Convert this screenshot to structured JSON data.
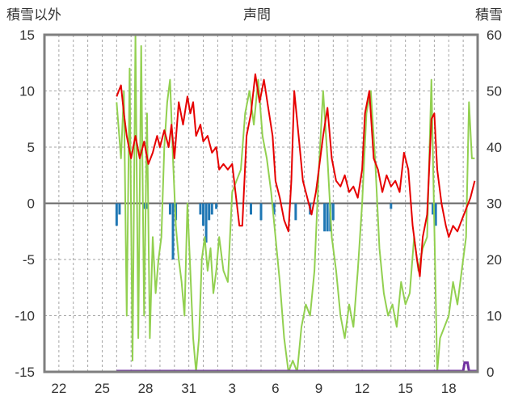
{
  "chart_data": {
    "type": "line",
    "title": "声問",
    "left_axis_label": "積雪以外",
    "right_axis_label": "積雪",
    "left_ylim": [
      -15,
      15
    ],
    "left_yticks": [
      15,
      10,
      5,
      0,
      -5,
      -10,
      -15
    ],
    "right_ylim": [
      0,
      60
    ],
    "right_yticks": [
      60,
      50,
      40,
      30,
      20,
      10,
      0
    ],
    "x_range": [
      0,
      30
    ],
    "x_ticks": [
      {
        "label": "22",
        "pos": 1
      },
      {
        "label": "25",
        "pos": 4
      },
      {
        "label": "28",
        "pos": 7
      },
      {
        "label": "31",
        "pos": 10
      },
      {
        "label": "3",
        "pos": 13
      },
      {
        "label": "6",
        "pos": 16
      },
      {
        "label": "9",
        "pos": 19
      },
      {
        "label": "12",
        "pos": 22
      },
      {
        "label": "15",
        "pos": 25
      },
      {
        "label": "18",
        "pos": 28
      }
    ],
    "grid": true,
    "colors": {
      "temperature": "#e60000",
      "wind": "#92d050",
      "precipitation": "#1f77b4",
      "snow": "#7030a0",
      "frame": "#7f7f7f"
    },
    "series": [
      {
        "key": "temperature",
        "axis": "left",
        "points": [
          [
            5.0,
            9.5
          ],
          [
            5.3,
            10.5
          ],
          [
            5.5,
            8.0
          ],
          [
            5.7,
            6.0
          ],
          [
            6.0,
            4.0
          ],
          [
            6.3,
            6.0
          ],
          [
            6.6,
            4.0
          ],
          [
            6.9,
            5.5
          ],
          [
            7.2,
            3.5
          ],
          [
            7.5,
            4.5
          ],
          [
            7.8,
            6.0
          ],
          [
            8.0,
            5.0
          ],
          [
            8.3,
            6.5
          ],
          [
            8.6,
            5.0
          ],
          [
            8.8,
            7.0
          ],
          [
            9.0,
            4.0
          ],
          [
            9.3,
            9.0
          ],
          [
            9.6,
            7.0
          ],
          [
            9.9,
            9.5
          ],
          [
            10.1,
            8.0
          ],
          [
            10.3,
            9.0
          ],
          [
            10.5,
            6.0
          ],
          [
            10.8,
            7.0
          ],
          [
            11.0,
            5.5
          ],
          [
            11.3,
            6.0
          ],
          [
            11.6,
            4.5
          ],
          [
            11.9,
            5.0
          ],
          [
            12.1,
            3.0
          ],
          [
            12.4,
            3.5
          ],
          [
            12.7,
            3.0
          ],
          [
            13.0,
            3.5
          ],
          [
            13.5,
            -2.0
          ],
          [
            13.7,
            -2.0
          ],
          [
            14.0,
            6.0
          ],
          [
            14.3,
            8.0
          ],
          [
            14.6,
            11.5
          ],
          [
            14.9,
            9.0
          ],
          [
            15.2,
            11.0
          ],
          [
            15.5,
            8.5
          ],
          [
            15.8,
            6.0
          ],
          [
            16.0,
            2.0
          ],
          [
            16.3,
            0.5
          ],
          [
            16.6,
            -1.5
          ],
          [
            16.9,
            -2.5
          ],
          [
            17.1,
            2.0
          ],
          [
            17.3,
            10.0
          ],
          [
            17.6,
            6.0
          ],
          [
            17.9,
            2.0
          ],
          [
            18.2,
            0.5
          ],
          [
            18.5,
            -1.0
          ],
          [
            18.8,
            1.0
          ],
          [
            19.0,
            3.0
          ],
          [
            19.3,
            6.0
          ],
          [
            19.6,
            8.5
          ],
          [
            19.9,
            4.0
          ],
          [
            20.2,
            2.0
          ],
          [
            20.5,
            1.5
          ],
          [
            20.8,
            2.5
          ],
          [
            21.1,
            1.0
          ],
          [
            21.4,
            1.5
          ],
          [
            21.7,
            0.5
          ],
          [
            22.0,
            3.0
          ],
          [
            22.2,
            8.0
          ],
          [
            22.5,
            10.0
          ],
          [
            22.8,
            4.0
          ],
          [
            23.1,
            3.0
          ],
          [
            23.4,
            1.0
          ],
          [
            23.7,
            2.5
          ],
          [
            24.0,
            1.5
          ],
          [
            24.3,
            2.0
          ],
          [
            24.6,
            1.0
          ],
          [
            24.9,
            4.5
          ],
          [
            25.2,
            3.0
          ],
          [
            25.5,
            -2.0
          ],
          [
            25.8,
            -5.0
          ],
          [
            26.0,
            -6.5
          ],
          [
            26.2,
            -3.0
          ],
          [
            26.5,
            -1.0
          ],
          [
            26.8,
            7.5
          ],
          [
            27.0,
            8.0
          ],
          [
            27.2,
            3.0
          ],
          [
            27.5,
            0.0
          ],
          [
            27.8,
            -2.0
          ],
          [
            28.0,
            -3.0
          ],
          [
            28.3,
            -2.0
          ],
          [
            28.6,
            -2.5
          ],
          [
            28.9,
            -1.5
          ],
          [
            29.2,
            -0.5
          ],
          [
            29.5,
            0.5
          ],
          [
            29.8,
            2.0
          ]
        ]
      },
      {
        "key": "wind",
        "axis": "left",
        "points": [
          [
            5.0,
            9.0
          ],
          [
            5.3,
            4.0
          ],
          [
            5.5,
            10.0
          ],
          [
            5.7,
            -10.0
          ],
          [
            5.9,
            12.0
          ],
          [
            6.1,
            -14.0
          ],
          [
            6.3,
            15.0
          ],
          [
            6.5,
            -12.0
          ],
          [
            6.7,
            14.0
          ],
          [
            6.9,
            -10.0
          ],
          [
            7.1,
            8.0
          ],
          [
            7.3,
            -12.0
          ],
          [
            7.5,
            -3.0
          ],
          [
            7.7,
            -8.0
          ],
          [
            7.9,
            -5.0
          ],
          [
            8.1,
            -3.0
          ],
          [
            8.3,
            5.0
          ],
          [
            8.5,
            9.0
          ],
          [
            8.7,
            11.0
          ],
          [
            8.9,
            4.0
          ],
          [
            9.1,
            -2.0
          ],
          [
            9.3,
            -5.0
          ],
          [
            9.5,
            -7.0
          ],
          [
            9.7,
            -10.0
          ],
          [
            9.9,
            0.0
          ],
          [
            10.1,
            -6.0
          ],
          [
            10.3,
            -12.0
          ],
          [
            10.5,
            -15.0
          ],
          [
            10.7,
            -12.0
          ],
          [
            10.9,
            -5.0
          ],
          [
            11.1,
            -3.0
          ],
          [
            11.3,
            -6.0
          ],
          [
            11.5,
            -4.0
          ],
          [
            11.7,
            -8.0
          ],
          [
            11.9,
            -6.0
          ],
          [
            12.1,
            -3.0
          ],
          [
            12.4,
            -6.0
          ],
          [
            12.7,
            -7.0
          ],
          [
            13.0,
            1.0
          ],
          [
            13.3,
            2.0
          ],
          [
            13.6,
            3.0
          ],
          [
            13.9,
            8.0
          ],
          [
            14.2,
            10.0
          ],
          [
            14.5,
            7.0
          ],
          [
            14.8,
            11.0
          ],
          [
            15.1,
            6.0
          ],
          [
            15.4,
            4.0
          ],
          [
            15.7,
            1.0
          ],
          [
            16.0,
            -3.0
          ],
          [
            16.3,
            -7.0
          ],
          [
            16.6,
            -12.0
          ],
          [
            16.9,
            -15.0
          ],
          [
            17.2,
            -14.0
          ],
          [
            17.5,
            -15.0
          ],
          [
            17.8,
            -11.0
          ],
          [
            18.1,
            -9.0
          ],
          [
            18.4,
            -10.0
          ],
          [
            18.7,
            -6.0
          ],
          [
            19.0,
            3.0
          ],
          [
            19.3,
            10.0
          ],
          [
            19.6,
            4.0
          ],
          [
            19.9,
            -3.0
          ],
          [
            20.2,
            -6.0
          ],
          [
            20.5,
            -10.0
          ],
          [
            20.8,
            -12.0
          ],
          [
            21.1,
            -9.0
          ],
          [
            21.4,
            -11.0
          ],
          [
            21.7,
            -6.0
          ],
          [
            22.0,
            0.0
          ],
          [
            22.3,
            8.0
          ],
          [
            22.6,
            10.0
          ],
          [
            22.9,
            4.0
          ],
          [
            23.2,
            -4.0
          ],
          [
            23.5,
            -8.0
          ],
          [
            23.8,
            -10.0
          ],
          [
            24.1,
            -9.0
          ],
          [
            24.4,
            -11.0
          ],
          [
            24.7,
            -7.0
          ],
          [
            25.0,
            -9.0
          ],
          [
            25.3,
            -8.0
          ],
          [
            25.6,
            -3.0
          ],
          [
            25.9,
            -6.0
          ],
          [
            26.2,
            -4.0
          ],
          [
            26.5,
            -3.0
          ],
          [
            26.8,
            11.0
          ],
          [
            27.0,
            -2.0
          ],
          [
            27.2,
            -15.0
          ],
          [
            27.4,
            -12.0
          ],
          [
            27.7,
            -11.0
          ],
          [
            28.0,
            -10.0
          ],
          [
            28.3,
            -7.0
          ],
          [
            28.6,
            -9.0
          ],
          [
            28.9,
            -6.0
          ],
          [
            29.2,
            -3.0
          ],
          [
            29.4,
            9.0
          ],
          [
            29.6,
            4.0
          ],
          [
            29.8,
            4.0
          ]
        ]
      }
    ],
    "precipitation_bars": [
      [
        5.0,
        -2.0
      ],
      [
        5.2,
        -1.0
      ],
      [
        6.9,
        -0.5
      ],
      [
        7.1,
        -0.5
      ],
      [
        8.7,
        -1.0
      ],
      [
        8.9,
        -5.0
      ],
      [
        9.1,
        -1.5
      ],
      [
        10.8,
        -1.0
      ],
      [
        11.0,
        -2.0
      ],
      [
        11.2,
        -3.5
      ],
      [
        11.4,
        -1.5
      ],
      [
        11.6,
        -1.0
      ],
      [
        11.9,
        -0.5
      ],
      [
        14.3,
        -1.0
      ],
      [
        15.0,
        -1.5
      ],
      [
        15.9,
        -1.0
      ],
      [
        17.4,
        -1.5
      ],
      [
        18.4,
        -1.0
      ],
      [
        19.4,
        -2.5
      ],
      [
        19.6,
        -2.5
      ],
      [
        19.8,
        -2.5
      ],
      [
        20.0,
        -1.5
      ],
      [
        24.0,
        -0.5
      ],
      [
        26.9,
        -1.0
      ],
      [
        27.1,
        -2.0
      ]
    ],
    "snow_depth": [
      [
        5.0,
        0.0
      ],
      [
        29.0,
        0.0
      ],
      [
        29.1,
        1.5
      ],
      [
        29.3,
        1.5
      ],
      [
        29.4,
        0.0
      ],
      [
        30.0,
        0.0
      ]
    ]
  }
}
